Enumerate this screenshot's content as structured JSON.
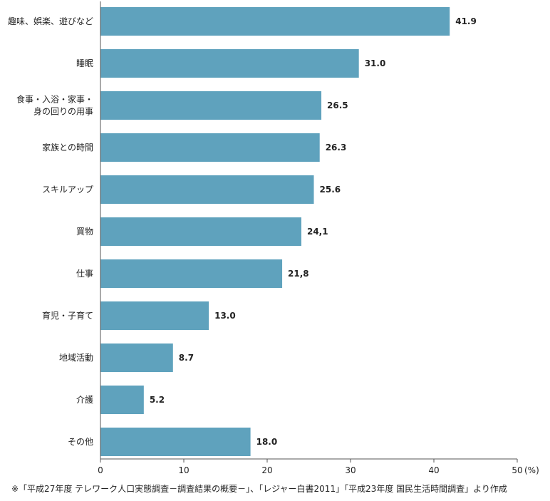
{
  "chart_data": {
    "type": "bar",
    "orientation": "horizontal",
    "categories": [
      [
        "趣味、娯楽、遊びなど"
      ],
      [
        "睡眠"
      ],
      [
        "食事・入浴・家事・",
        "身の回りの用事"
      ],
      [
        "家族との時間"
      ],
      [
        "スキルアップ"
      ],
      [
        "買物"
      ],
      [
        "仕事"
      ],
      [
        "育児・子育て"
      ],
      [
        "地域活動"
      ],
      [
        "介護"
      ],
      [
        "その他"
      ]
    ],
    "values": [
      41.9,
      31.0,
      26.5,
      26.3,
      25.6,
      24.1,
      21.8,
      13.0,
      8.7,
      5.2,
      18.0
    ],
    "value_labels": [
      "41.9",
      "31.0",
      "26.5",
      "26.3",
      "25.6",
      "24,1",
      "21,8",
      "13.0",
      "8.7",
      "5.2",
      "18.0"
    ],
    "xlim": [
      0,
      50
    ],
    "xticks": [
      0,
      10,
      20,
      30,
      40,
      50
    ],
    "xunit": "(%)",
    "grid": false,
    "bar_color": "#5fa2bd"
  },
  "source_note": "※「平成27年度 テレワーク人口実態調査－調査結果の概要－」、「レジャー白書2011」「平成23年度 国民生活時間調査」より作成"
}
